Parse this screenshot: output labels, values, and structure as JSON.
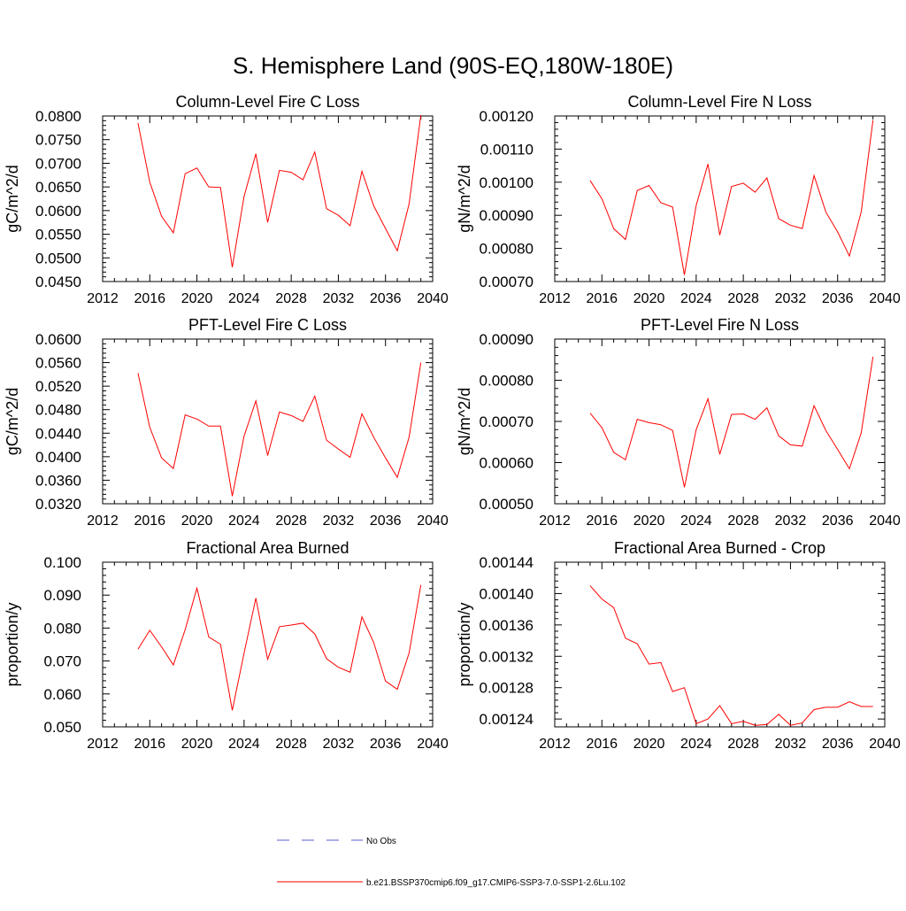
{
  "figure": {
    "title": "S. Hemisphere Land (90S-EQ,180W-180E)"
  },
  "legend": {
    "items": [
      {
        "label": "No Obs",
        "color": "#5b5bd6",
        "dash": "dashed"
      },
      {
        "label": "b.e21.BSSP370cmip6.f09_g17.CMIP6-SSP3-7.0-SSP1-2.6Lu.102",
        "color": "#ff0000",
        "dash": "solid"
      }
    ]
  },
  "chart_data": [
    {
      "type": "line",
      "title": "Column-Level Fire C Loss",
      "ylabel": "gC/m^2/d",
      "xlabel": "",
      "xlim": [
        2012,
        2040
      ],
      "ylim": [
        0.045,
        0.08
      ],
      "xticks": [
        "2012",
        "2016",
        "2020",
        "2024",
        "2028",
        "2032",
        "2036",
        "2040"
      ],
      "yticks": [
        "0.0450",
        "0.0500",
        "0.0550",
        "0.0600",
        "0.0650",
        "0.0700",
        "0.0750",
        "0.0800"
      ],
      "series": [
        {
          "color": "#ff0000",
          "x": [
            2015,
            2016,
            2017,
            2018,
            2019,
            2020,
            2021,
            2022,
            2023,
            2024,
            2025,
            2026,
            2027,
            2028,
            2029,
            2030,
            2031,
            2032,
            2033,
            2034,
            2035,
            2036,
            2037,
            2038,
            2039
          ],
          "values": [
            0.0785,
            0.066,
            0.0588,
            0.0553,
            0.0678,
            0.069,
            0.065,
            0.0649,
            0.048,
            0.063,
            0.072,
            0.0575,
            0.0685,
            0.0681,
            0.0665,
            0.0724,
            0.0604,
            0.059,
            0.0568,
            0.0683,
            0.061,
            0.0562,
            0.0515,
            0.0614,
            0.0802
          ]
        }
      ]
    },
    {
      "type": "line",
      "title": "Column-Level Fire N Loss",
      "ylabel": "gN/m^2/d",
      "xlabel": "",
      "xlim": [
        2012,
        2040
      ],
      "ylim": [
        0.0007,
        0.0012
      ],
      "xticks": [
        "2012",
        "2016",
        "2020",
        "2024",
        "2028",
        "2032",
        "2036",
        "2040"
      ],
      "yticks": [
        "0.00070",
        "0.00080",
        "0.00090",
        "0.00100",
        "0.00110",
        "0.00120"
      ],
      "series": [
        {
          "color": "#ff0000",
          "x": [
            2015,
            2016,
            2017,
            2018,
            2019,
            2020,
            2021,
            2022,
            2023,
            2024,
            2025,
            2026,
            2027,
            2028,
            2029,
            2030,
            2031,
            2032,
            2033,
            2034,
            2035,
            2036,
            2037,
            2038,
            2039
          ],
          "values": [
            0.001005,
            0.00095,
            0.00086,
            0.000827,
            0.000975,
            0.00099,
            0.000938,
            0.000925,
            0.00072,
            0.00093,
            0.001055,
            0.00084,
            0.000987,
            0.000997,
            0.00097,
            0.001013,
            0.00089,
            0.00087,
            0.00086,
            0.00102,
            0.00091,
            0.00085,
            0.000777,
            0.00091,
            0.001187
          ]
        }
      ]
    },
    {
      "type": "line",
      "title": "PFT-Level Fire C Loss",
      "ylabel": "gC/m^2/d",
      "xlabel": "",
      "xlim": [
        2012,
        2040
      ],
      "ylim": [
        0.032,
        0.06
      ],
      "xticks": [
        "2012",
        "2016",
        "2020",
        "2024",
        "2028",
        "2032",
        "2036",
        "2040"
      ],
      "yticks": [
        "0.0320",
        "0.0360",
        "0.0400",
        "0.0440",
        "0.0480",
        "0.0520",
        "0.0560",
        "0.0600"
      ],
      "series": [
        {
          "color": "#ff0000",
          "x": [
            2015,
            2016,
            2017,
            2018,
            2019,
            2020,
            2021,
            2022,
            2023,
            2024,
            2025,
            2026,
            2027,
            2028,
            2029,
            2030,
            2031,
            2032,
            2033,
            2034,
            2035,
            2036,
            2037,
            2038,
            2039
          ],
          "values": [
            0.0542,
            0.045,
            0.0398,
            0.038,
            0.0471,
            0.0464,
            0.0452,
            0.0452,
            0.0333,
            0.0435,
            0.0495,
            0.0402,
            0.0476,
            0.047,
            0.046,
            0.0503,
            0.0428,
            0.0413,
            0.0399,
            0.0473,
            0.0433,
            0.0398,
            0.0365,
            0.0433,
            0.056
          ]
        }
      ]
    },
    {
      "type": "line",
      "title": "PFT-Level Fire N Loss",
      "ylabel": "gN/m^2/d",
      "xlabel": "",
      "xlim": [
        2012,
        2040
      ],
      "ylim": [
        0.0005,
        0.0009
      ],
      "xticks": [
        "2012",
        "2016",
        "2020",
        "2024",
        "2028",
        "2032",
        "2036",
        "2040"
      ],
      "yticks": [
        "0.00050",
        "0.00060",
        "0.00070",
        "0.00080",
        "0.00090"
      ],
      "series": [
        {
          "color": "#ff0000",
          "x": [
            2015,
            2016,
            2017,
            2018,
            2019,
            2020,
            2021,
            2022,
            2023,
            2024,
            2025,
            2026,
            2027,
            2028,
            2029,
            2030,
            2031,
            2032,
            2033,
            2034,
            2035,
            2036,
            2037,
            2038,
            2039
          ],
          "values": [
            0.00072,
            0.000685,
            0.000625,
            0.000607,
            0.000705,
            0.000697,
            0.000692,
            0.000678,
            0.00054,
            0.00068,
            0.000755,
            0.00062,
            0.000717,
            0.000718,
            0.000705,
            0.000733,
            0.000665,
            0.000643,
            0.00064,
            0.000738,
            0.000678,
            0.000632,
            0.000585,
            0.000672,
            0.000857
          ]
        }
      ]
    },
    {
      "type": "line",
      "title": "Fractional Area Burned",
      "ylabel": "proportion/y",
      "xlabel": "",
      "xlim": [
        2012,
        2040
      ],
      "ylim": [
        0.05,
        0.1
      ],
      "xticks": [
        "2012",
        "2016",
        "2020",
        "2024",
        "2028",
        "2032",
        "2036",
        "2040"
      ],
      "yticks": [
        "0.050",
        "0.060",
        "0.070",
        "0.080",
        "0.090",
        "0.100"
      ],
      "series": [
        {
          "color": "#ff0000",
          "x": [
            2015,
            2016,
            2017,
            2018,
            2019,
            2020,
            2021,
            2022,
            2023,
            2024,
            2025,
            2026,
            2027,
            2028,
            2029,
            2030,
            2031,
            2032,
            2033,
            2034,
            2035,
            2036,
            2037,
            2038,
            2039
          ],
          "values": [
            0.0736,
            0.0793,
            0.0743,
            0.0688,
            0.0795,
            0.0921,
            0.0773,
            0.0751,
            0.055,
            0.0724,
            0.0891,
            0.0705,
            0.0804,
            0.0809,
            0.0815,
            0.0782,
            0.0707,
            0.0681,
            0.0666,
            0.0834,
            0.0756,
            0.0639,
            0.0614,
            0.0724,
            0.0931
          ]
        }
      ]
    },
    {
      "type": "line",
      "title": "Fractional Area Burned - Crop",
      "ylabel": "proportion/y",
      "xlabel": "",
      "xlim": [
        2012,
        2040
      ],
      "ylim": [
        0.00123,
        0.00144
      ],
      "xticks": [
        "2012",
        "2016",
        "2020",
        "2024",
        "2028",
        "2032",
        "2036",
        "2040"
      ],
      "yticks": [
        "0.00124",
        "0.00128",
        "0.00132",
        "0.00136",
        "0.00140",
        "0.00144"
      ],
      "series": [
        {
          "color": "#ff0000",
          "x": [
            2015,
            2016,
            2017,
            2018,
            2019,
            2020,
            2021,
            2022,
            2023,
            2024,
            2025,
            2026,
            2027,
            2028,
            2029,
            2030,
            2031,
            2032,
            2033,
            2034,
            2035,
            2036,
            2037,
            2038,
            2039
          ],
          "values": [
            0.00141,
            0.001393,
            0.001382,
            0.001343,
            0.001336,
            0.00131,
            0.001312,
            0.001275,
            0.00128,
            0.001234,
            0.00124,
            0.001257,
            0.001234,
            0.001237,
            0.001232,
            0.001233,
            0.001246,
            0.001232,
            0.001235,
            0.001252,
            0.001255,
            0.001255,
            0.001262,
            0.001256,
            0.001256
          ]
        }
      ]
    }
  ]
}
